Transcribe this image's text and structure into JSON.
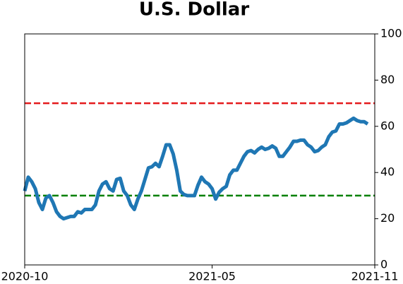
{
  "chart_data": {
    "type": "line",
    "title": "U.S. Dollar",
    "x": [
      0,
      4,
      8,
      12,
      16,
      20,
      24,
      28,
      32,
      36,
      40,
      44,
      48,
      52,
      56,
      60,
      64,
      68,
      72,
      76,
      80,
      84,
      88,
      92,
      96,
      100,
      104,
      108,
      112,
      116,
      120,
      124,
      128,
      132,
      136,
      140,
      144,
      148,
      152,
      156,
      160,
      164,
      168,
      172,
      176,
      180,
      184,
      188,
      192,
      196,
      200,
      204,
      208,
      212,
      216,
      220,
      224,
      228,
      232,
      236,
      240,
      244,
      248,
      252,
      256,
      260,
      264,
      268,
      272,
      276,
      280,
      284,
      288,
      292,
      296,
      300,
      304,
      308,
      312,
      316,
      320,
      324,
      328,
      332,
      336,
      340,
      344,
      348,
      352,
      356,
      360,
      364,
      368,
      372,
      376,
      380,
      384,
      388
    ],
    "series": [
      {
        "color": "#1f77b4",
        "values": [
          32,
          38,
          36,
          33,
          27,
          24,
          29,
          30,
          27,
          23,
          21,
          20,
          20.5,
          21,
          21,
          23,
          22.5,
          24,
          24,
          24,
          26,
          32,
          35,
          36,
          33,
          32,
          37,
          37.5,
          32,
          30,
          26,
          24,
          28.5,
          32,
          37,
          42,
          42.5,
          44,
          42.5,
          47,
          52,
          52,
          48,
          41,
          32,
          30.5,
          30,
          30,
          30,
          34.5,
          38,
          36,
          35,
          33,
          28.5,
          31.5,
          33,
          34,
          39,
          41,
          41,
          44,
          47,
          49,
          49.5,
          48.5,
          50,
          51,
          50,
          50.5,
          51.5,
          50.5,
          47,
          47,
          49,
          51,
          53.5,
          53.5,
          54,
          54,
          52,
          51,
          49,
          49.5,
          51,
          52,
          55.5,
          57.5,
          58,
          61,
          61,
          61.5,
          62.5,
          63.5,
          62.5,
          62,
          62,
          61
        ]
      }
    ],
    "reference_lines": [
      {
        "value": 70,
        "color": "#e41a1c"
      },
      {
        "value": 30,
        "color": "#008000"
      }
    ],
    "xlim": [
      0,
      396
    ],
    "xticks": [
      {
        "value": 0,
        "label": "2020-10"
      },
      {
        "value": 212,
        "label": "2021-05"
      },
      {
        "value": 396,
        "label": "2021-11"
      }
    ],
    "ylim": [
      0,
      100
    ],
    "yticks": [
      0,
      20,
      40,
      60,
      80,
      100
    ],
    "y_axis_side": "right"
  }
}
